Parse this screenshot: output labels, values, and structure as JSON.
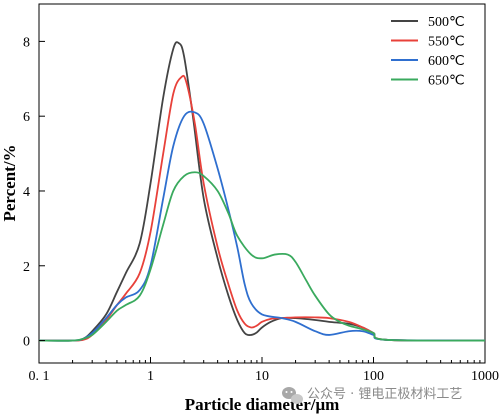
{
  "chart_data": {
    "type": "line",
    "title": "",
    "xlabel": "Particle diameter/μm",
    "ylabel": "Percent/%",
    "xscale": "log",
    "xlim": [
      0.1,
      1000
    ],
    "ylim": [
      -0.6,
      9.0
    ],
    "xticks": [
      0.1,
      1,
      10,
      100,
      1000
    ],
    "xtick_labels": [
      "0. 1",
      "1",
      "10",
      "100",
      "1000"
    ],
    "yticks": [
      0,
      2,
      4,
      6,
      8
    ],
    "ytick_labels": [
      "0",
      "2",
      "4",
      "6",
      "8"
    ],
    "grid": false,
    "legend_position": "top-right",
    "series": [
      {
        "name": "500℃",
        "color": "#444444",
        "x": [
          0.1,
          0.2,
          0.25,
          0.3,
          0.4,
          0.5,
          0.6,
          0.8,
          1.0,
          1.3,
          1.6,
          1.8,
          2.0,
          2.4,
          3.0,
          4.0,
          5.0,
          6.0,
          7.0,
          8.0,
          9.0,
          10,
          12,
          15,
          20,
          30,
          40,
          60,
          80,
          100,
          130,
          1000
        ],
        "y": [
          0,
          0,
          0.05,
          0.25,
          0.7,
          1.3,
          1.8,
          2.6,
          4.2,
          6.5,
          7.8,
          7.95,
          7.6,
          6.0,
          3.8,
          2.2,
          1.2,
          0.55,
          0.2,
          0.15,
          0.22,
          0.35,
          0.5,
          0.6,
          0.6,
          0.55,
          0.5,
          0.45,
          0.35,
          0.2,
          0.02,
          0
        ]
      },
      {
        "name": "550℃",
        "color": "#e8413a",
        "x": [
          0.1,
          0.2,
          0.25,
          0.3,
          0.4,
          0.5,
          0.6,
          0.8,
          1.0,
          1.3,
          1.6,
          1.9,
          2.1,
          2.5,
          3.0,
          4.0,
          5.0,
          6.0,
          7.0,
          8.0,
          9.0,
          10,
          12,
          15,
          20,
          30,
          40,
          60,
          80,
          100,
          130,
          1000
        ],
        "y": [
          0,
          0,
          0.02,
          0.15,
          0.55,
          0.95,
          1.25,
          1.8,
          2.9,
          5.0,
          6.6,
          7.05,
          6.9,
          5.8,
          4.2,
          2.5,
          1.5,
          0.8,
          0.45,
          0.35,
          0.4,
          0.5,
          0.58,
          0.6,
          0.62,
          0.62,
          0.6,
          0.5,
          0.35,
          0.2,
          0.02,
          0
        ]
      },
      {
        "name": "600℃",
        "color": "#2f6fcf",
        "x": [
          0.1,
          0.2,
          0.25,
          0.3,
          0.4,
          0.5,
          0.6,
          0.8,
          1.0,
          1.3,
          1.6,
          2.0,
          2.5,
          3.0,
          4.0,
          5.0,
          6.0,
          7.0,
          8.0,
          10,
          15,
          20,
          30,
          40,
          60,
          80,
          100,
          130,
          1000
        ],
        "y": [
          0,
          0,
          0.05,
          0.2,
          0.6,
          0.95,
          1.15,
          1.35,
          2.0,
          3.8,
          5.2,
          6.0,
          6.1,
          5.8,
          4.6,
          3.5,
          2.5,
          1.5,
          1.0,
          0.7,
          0.6,
          0.5,
          0.25,
          0.15,
          0.25,
          0.25,
          0.15,
          0.02,
          0
        ]
      },
      {
        "name": "650℃",
        "color": "#3aaa5e",
        "x": [
          0.1,
          0.2,
          0.25,
          0.3,
          0.4,
          0.5,
          0.6,
          0.8,
          1.0,
          1.3,
          1.6,
          2.0,
          2.5,
          3.0,
          4.0,
          5.0,
          6.0,
          8.0,
          10,
          13,
          17,
          20,
          25,
          30,
          40,
          50,
          60,
          80,
          100,
          130,
          1000
        ],
        "y": [
          0,
          0,
          0.05,
          0.15,
          0.5,
          0.8,
          0.95,
          1.2,
          1.9,
          3.1,
          4.0,
          4.4,
          4.5,
          4.4,
          4.0,
          3.4,
          2.8,
          2.3,
          2.2,
          2.3,
          2.3,
          2.1,
          1.6,
          1.2,
          0.7,
          0.5,
          0.4,
          0.3,
          0.2,
          0.02,
          0
        ]
      }
    ]
  },
  "watermark": {
    "text": "公众号 · 锂电正极材料工艺",
    "icon": "wechat-icon"
  }
}
